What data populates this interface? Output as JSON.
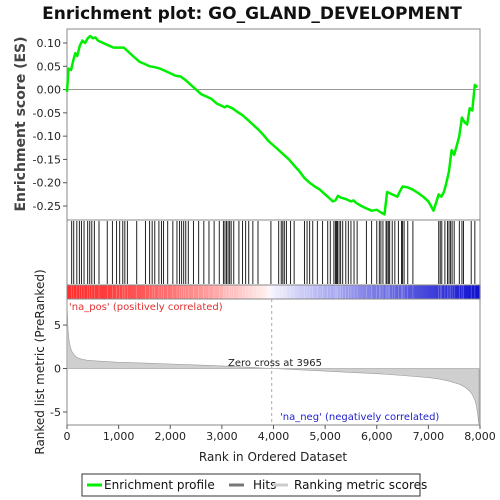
{
  "chart_data": {
    "type": "line",
    "title": "Enrichment plot: GO_GLAND_DEVELOPMENT",
    "xlabel": "Rank in Ordered Dataset",
    "xlim": [
      0,
      8000
    ],
    "x_ticks": [
      0,
      1000,
      2000,
      3000,
      4000,
      5000,
      6000,
      7000,
      8000
    ],
    "x_tick_labels": [
      "0",
      "1,000",
      "2,000",
      "3,000",
      "4,000",
      "5,000",
      "6,000",
      "7,000",
      "8,000"
    ],
    "enrichment_panel": {
      "ylabel": "Enrichment score (ES)",
      "ylim": [
        -0.28,
        0.13
      ],
      "y_ticks": [
        0.1,
        0.05,
        0.0,
        -0.05,
        -0.1,
        -0.15,
        -0.2,
        -0.25
      ],
      "y_tick_labels": [
        "0.10",
        "0.05",
        "0.00",
        "-0.05",
        "-0.10",
        "-0.15",
        "-0.20",
        "-0.25"
      ],
      "series": [
        {
          "name": "Enrichment profile",
          "color": "#00ee00",
          "x": [
            0,
            30,
            80,
            120,
            160,
            200,
            250,
            300,
            350,
            400,
            450,
            500,
            550,
            600,
            700,
            800,
            900,
            1000,
            1100,
            1200,
            1300,
            1400,
            1500,
            1600,
            1700,
            1800,
            1900,
            2000,
            2100,
            2200,
            2300,
            2400,
            2500,
            2600,
            2700,
            2800,
            2900,
            3000,
            3050,
            3100,
            3200,
            3300,
            3400,
            3500,
            3600,
            3700,
            3800,
            3900,
            4000,
            4100,
            4200,
            4300,
            4400,
            4500,
            4600,
            4700,
            4800,
            4900,
            5000,
            5100,
            5150,
            5200,
            5250,
            5300,
            5400,
            5500,
            5550,
            5600,
            5700,
            5800,
            5900,
            6000,
            6100,
            6150,
            6200,
            6300,
            6400,
            6450,
            6500,
            6600,
            6700,
            6800,
            6900,
            7000,
            7100,
            7200,
            7250,
            7300,
            7350,
            7400,
            7450,
            7500,
            7550,
            7600,
            7650,
            7700,
            7750,
            7800,
            7850,
            7900,
            7950
          ],
          "y": [
            -0.005,
            0.045,
            0.042,
            0.062,
            0.078,
            0.072,
            0.095,
            0.105,
            0.1,
            0.11,
            0.115,
            0.11,
            0.112,
            0.105,
            0.1,
            0.095,
            0.09,
            0.09,
            0.09,
            0.08,
            0.07,
            0.06,
            0.055,
            0.05,
            0.048,
            0.045,
            0.04,
            0.035,
            0.03,
            0.028,
            0.02,
            0.01,
            0.0,
            -0.01,
            -0.015,
            -0.02,
            -0.03,
            -0.035,
            -0.038,
            -0.035,
            -0.04,
            -0.048,
            -0.055,
            -0.065,
            -0.075,
            -0.085,
            -0.097,
            -0.11,
            -0.12,
            -0.13,
            -0.14,
            -0.15,
            -0.163,
            -0.175,
            -0.19,
            -0.2,
            -0.208,
            -0.215,
            -0.225,
            -0.235,
            -0.24,
            -0.238,
            -0.228,
            -0.232,
            -0.235,
            -0.24,
            -0.238,
            -0.243,
            -0.25,
            -0.255,
            -0.26,
            -0.258,
            -0.265,
            -0.268,
            -0.22,
            -0.225,
            -0.23,
            -0.218,
            -0.208,
            -0.21,
            -0.215,
            -0.222,
            -0.23,
            -0.24,
            -0.26,
            -0.225,
            -0.23,
            -0.22,
            -0.2,
            -0.175,
            -0.13,
            -0.14,
            -0.12,
            -0.1,
            -0.06,
            -0.07,
            -0.075,
            -0.04,
            -0.045,
            0.01,
            0.005
          ]
        }
      ]
    },
    "hits_panel": {
      "series_name": "Hits",
      "hit_ranks": [
        90,
        130,
        190,
        240,
        280,
        330,
        400,
        440,
        480,
        530,
        620,
        780,
        880,
        960,
        1020,
        1080,
        1120,
        1170,
        1350,
        1520,
        1600,
        1650,
        1700,
        1780,
        1830,
        1870,
        1950,
        2050,
        2130,
        2180,
        2220,
        2260,
        2300,
        2350,
        2450,
        2550,
        2650,
        2750,
        2850,
        2950,
        3030,
        3060,
        3090,
        3120,
        3150,
        3180,
        3230,
        3330,
        3400,
        3460,
        3520,
        3600,
        3700,
        3950,
        4100,
        4150,
        4180,
        4210,
        4250,
        4330,
        4400,
        4600,
        4650,
        4700,
        4760,
        4850,
        4950,
        5050,
        5100,
        5170,
        5200,
        5220,
        5240,
        5270,
        5300,
        5340,
        5400,
        5450,
        5500,
        5560,
        5620,
        5800,
        5900,
        6000,
        6050,
        6080,
        6120,
        6180,
        6200,
        6230,
        6250,
        6300,
        6350,
        6420,
        6480,
        6500,
        6530,
        6600,
        6700,
        7200,
        7230,
        7260,
        7320,
        7370,
        7400,
        7430,
        7460,
        7500,
        7600,
        7650,
        7680,
        7830,
        7900
      ]
    },
    "metric_panel": {
      "ylabel": "Ranked list metric (PreRanked)",
      "series_name": "Ranking metric scores",
      "ylim": [
        -6.5,
        8
      ],
      "y_ticks": [
        5,
        0,
        -5
      ],
      "y_tick_labels": [
        "5",
        "0",
        "-5"
      ],
      "x": [
        0,
        10,
        20,
        40,
        60,
        80,
        100,
        150,
        200,
        300,
        400,
        600,
        800,
        1000,
        1500,
        2000,
        2500,
        3000,
        3500,
        3965,
        4500,
        5000,
        5500,
        6000,
        6500,
        7000,
        7200,
        7400,
        7600,
        7700,
        7800,
        7850,
        7900,
        7930,
        7950,
        7970,
        7980
      ],
      "y": [
        7.5,
        6.0,
        4.5,
        3.2,
        2.6,
        2.2,
        1.9,
        1.5,
        1.25,
        1.05,
        0.95,
        0.85,
        0.78,
        0.72,
        0.62,
        0.52,
        0.42,
        0.3,
        0.15,
        0.0,
        -0.15,
        -0.3,
        -0.45,
        -0.6,
        -0.8,
        -1.05,
        -1.2,
        -1.45,
        -1.8,
        -2.1,
        -2.6,
        -3.0,
        -3.6,
        -4.3,
        -5.0,
        -6.0,
        -6.5
      ],
      "pos_label": "'na_pos' (positively correlated)",
      "neg_label": "'na_neg' (negatively correlated)",
      "zero_cross_label": "Zero cross at 3965",
      "zero_cross": 3965
    },
    "legend": {
      "placement": "bottom",
      "entries": [
        {
          "label": "Enrichment profile",
          "color": "#00ee00"
        },
        {
          "label": "Hits",
          "color": "#777777"
        },
        {
          "label": "Ranking metric scores",
          "color": "#cccccc"
        }
      ]
    },
    "colors": {
      "pos_band": "#ff3030",
      "neg_band": "#1010d0",
      "pos_text": "#e03030",
      "neg_text": "#2020cc"
    }
  }
}
